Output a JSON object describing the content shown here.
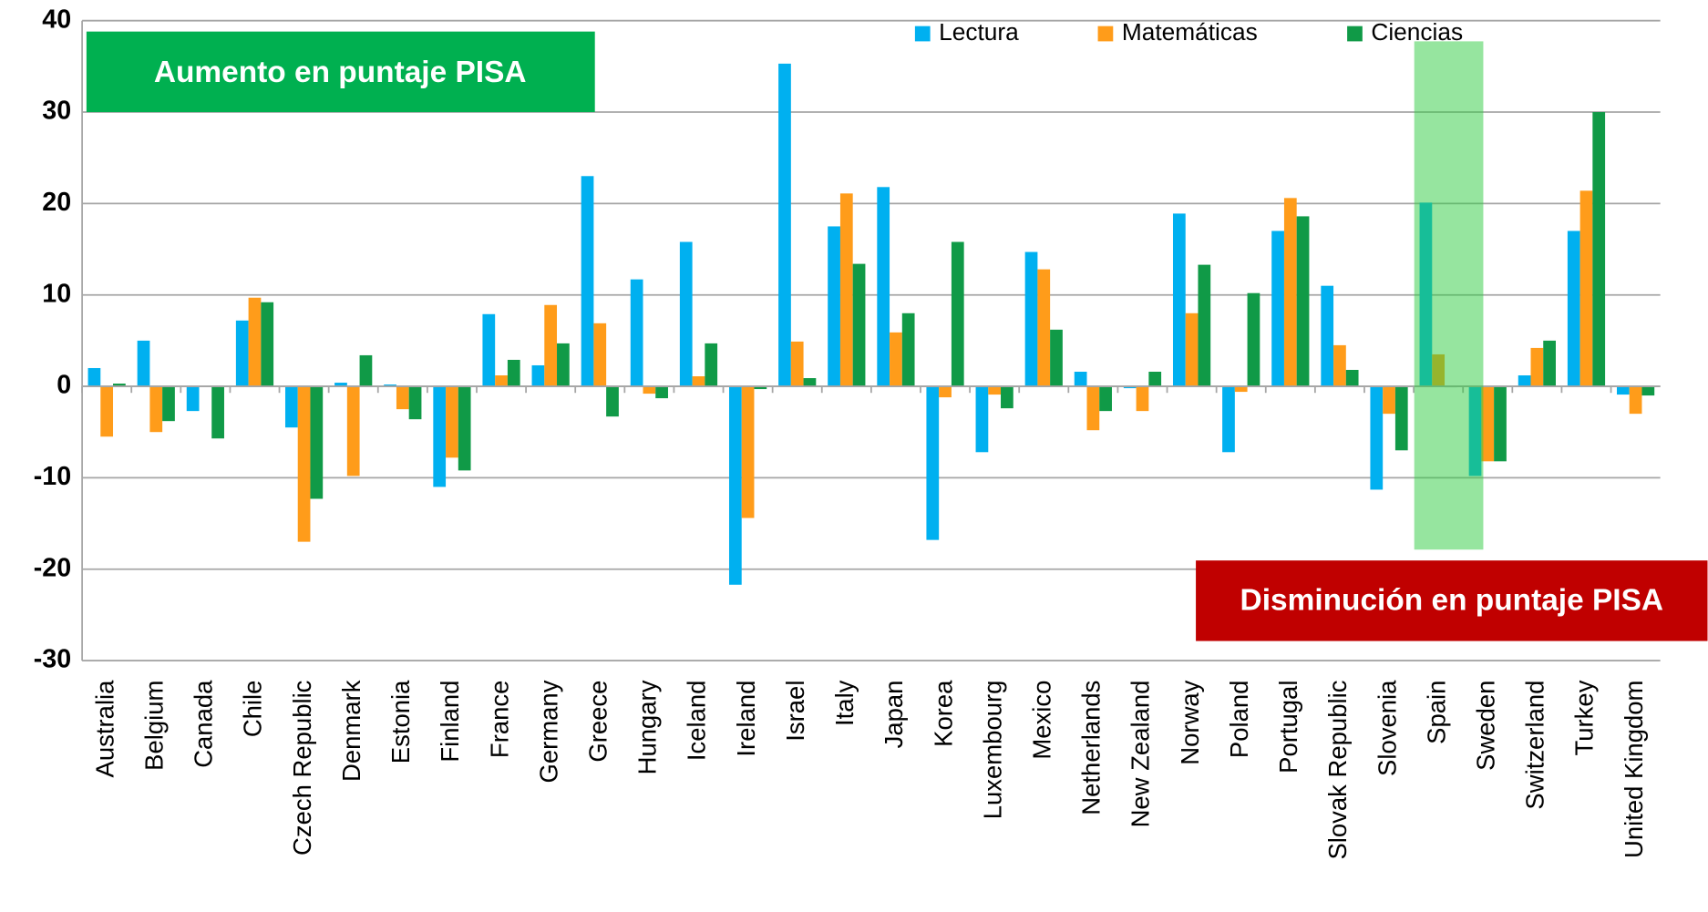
{
  "chart_data": {
    "type": "bar",
    "categories": [
      "Australia",
      "Belgium",
      "Canada",
      "Chile",
      "Czech Republic",
      "Denmark",
      "Estonia",
      "Finland",
      "France",
      "Germany",
      "Greece",
      "Hungary",
      "Iceland",
      "Ireland",
      "Israel",
      "Italy",
      "Japan",
      "Korea",
      "Luxembourg",
      "Mexico",
      "Netherlands",
      "New Zealand",
      "Norway",
      "Poland",
      "Portugal",
      "Slovak Republic",
      "Slovenia",
      "Spain",
      "Sweden",
      "Switzerland",
      "Turkey",
      "United Kingdom"
    ],
    "series": [
      {
        "name": "Lectura",
        "color": "#00b0f0",
        "values": [
          2,
          5,
          -2.7,
          7.2,
          -4.5,
          0.4,
          0.2,
          -11,
          7.9,
          2.3,
          23,
          11.7,
          15.8,
          -21.7,
          35.3,
          17.5,
          21.8,
          -16.8,
          -7.2,
          14.7,
          1.6,
          -0.2,
          18.9,
          -7.2,
          17,
          11,
          -11.3,
          20.1,
          -9.8,
          1.2,
          17,
          -0.9
        ]
      },
      {
        "name": "Matemáticas",
        "color": "#ff9c1a",
        "values": [
          -5.5,
          -5,
          0,
          9.7,
          -17,
          -9.8,
          -2.5,
          -7.8,
          1.2,
          8.9,
          6.9,
          -0.8,
          1.1,
          -14.4,
          4.9,
          21.1,
          5.9,
          -1.2,
          -0.9,
          12.8,
          -4.8,
          -2.7,
          8,
          -0.6,
          20.6,
          4.5,
          -3,
          3.5,
          -8.2,
          4.2,
          21.4,
          -3
        ]
      },
      {
        "name": "Ciencias",
        "color": "#109a47",
        "values": [
          0.3,
          -3.8,
          -5.7,
          9.2,
          -12.3,
          3.4,
          -3.6,
          -9.2,
          2.9,
          4.7,
          -3.3,
          -1.3,
          4.7,
          -0.3,
          0.9,
          13.4,
          8,
          15.8,
          -2.4,
          6.2,
          -2.7,
          1.6,
          13.3,
          10.2,
          18.6,
          1.8,
          -7,
          -0.1,
          -8.2,
          5,
          30,
          -1
        ]
      }
    ],
    "ylim": [
      -30,
      40
    ],
    "yticks": [
      -30,
      -20,
      -10,
      0,
      10,
      20,
      30,
      40
    ],
    "grid": true,
    "legend": "top",
    "highlight_category": "Spain",
    "annotations": [
      {
        "text": "Aumento en puntaje PISA",
        "color": "#00b050"
      },
      {
        "text": "Disminución en puntaje PISA",
        "color": "#c00000"
      }
    ]
  }
}
